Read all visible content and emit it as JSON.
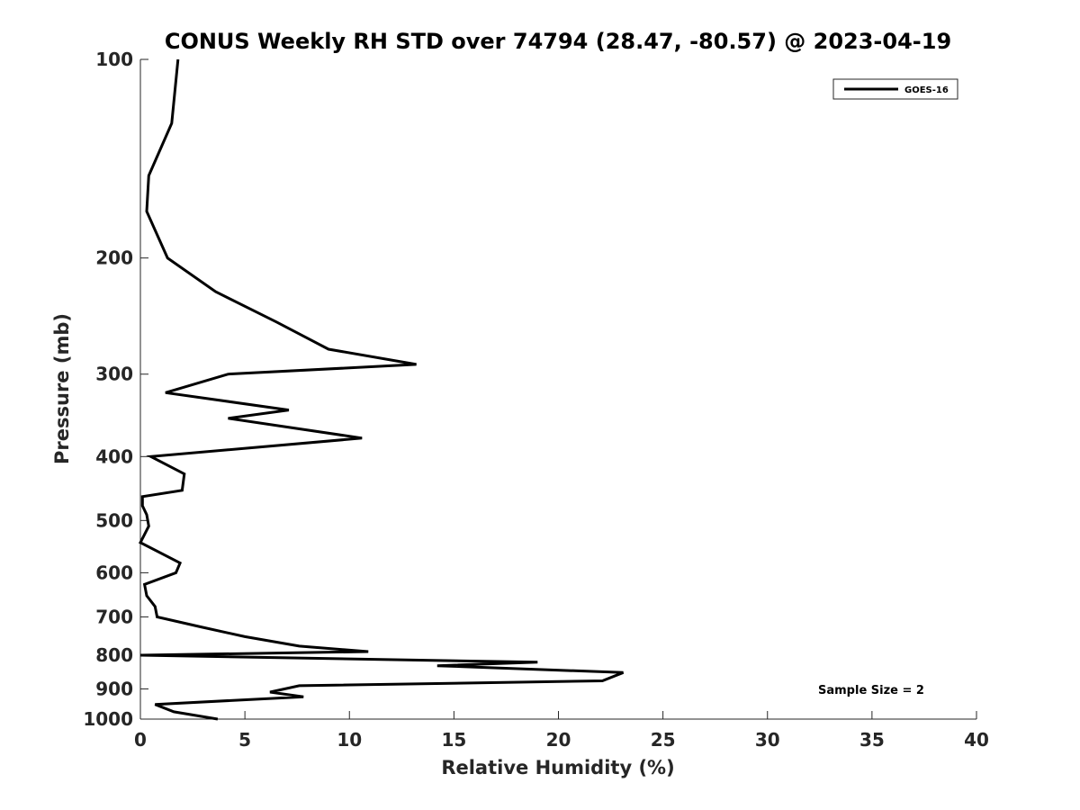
{
  "chart_data": {
    "type": "line",
    "title": "CONUS Weekly RH STD over 74794 (28.47, -80.57) @ 2023-04-19",
    "xlabel": "Relative Humidity (%)",
    "ylabel": "Pressure (mb)",
    "xlim": [
      0,
      40
    ],
    "ylim": [
      100,
      1000
    ],
    "yscale": "log",
    "y_reversed": true,
    "xticks": [
      0,
      5,
      10,
      15,
      20,
      25,
      30,
      35,
      40
    ],
    "yticks": [
      100,
      200,
      300,
      400,
      500,
      600,
      700,
      800,
      900,
      1000
    ],
    "grid": false,
    "legend_position": "top-right",
    "annotation": "Sample Size = 2",
    "series": [
      {
        "name": "GOES-16",
        "color": "#000000",
        "points": [
          [
            1.8,
            100
          ],
          [
            1.5,
            125
          ],
          [
            0.4,
            150
          ],
          [
            0.3,
            170
          ],
          [
            1.3,
            200
          ],
          [
            3.6,
            225
          ],
          [
            6.5,
            250
          ],
          [
            9.0,
            275
          ],
          [
            13.2,
            290
          ],
          [
            4.2,
            300
          ],
          [
            1.2,
            320
          ],
          [
            7.1,
            340
          ],
          [
            4.2,
            350
          ],
          [
            10.6,
            375
          ],
          [
            0.5,
            400
          ],
          [
            2.1,
            425
          ],
          [
            2.0,
            450
          ],
          [
            0.1,
            460
          ],
          [
            0.1,
            475
          ],
          [
            0.3,
            490
          ],
          [
            0.4,
            510
          ],
          [
            0.0,
            540
          ],
          [
            1.9,
            580
          ],
          [
            1.7,
            600
          ],
          [
            0.2,
            625
          ],
          [
            0.3,
            650
          ],
          [
            0.7,
            675
          ],
          [
            0.8,
            700
          ],
          [
            2.9,
            725
          ],
          [
            5.0,
            750
          ],
          [
            7.6,
            775
          ],
          [
            10.9,
            790
          ],
          [
            0.0,
            800
          ],
          [
            19.0,
            820
          ],
          [
            14.2,
            830
          ],
          [
            23.1,
            850
          ],
          [
            22.1,
            875
          ],
          [
            7.6,
            890
          ],
          [
            6.2,
            910
          ],
          [
            7.8,
            925
          ],
          [
            0.7,
            950
          ],
          [
            1.6,
            975
          ],
          [
            3.7,
            1000
          ]
        ]
      }
    ]
  }
}
